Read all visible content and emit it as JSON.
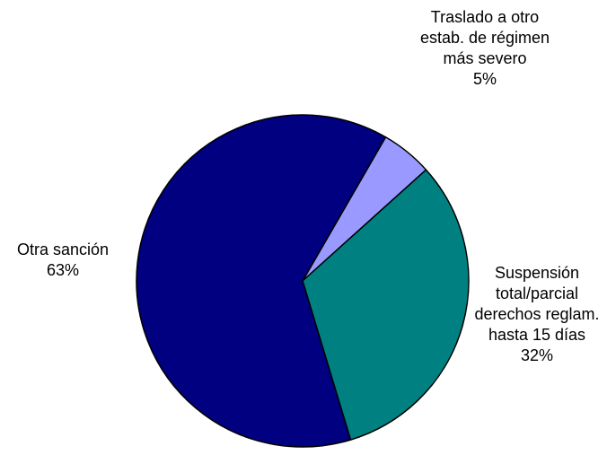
{
  "chart_data": {
    "type": "pie",
    "categories": [
      "Traslado a otro estab. de régimen más severo",
      "Suspensión total/parcial derechos reglam. hasta 15 días",
      "Otra sanción"
    ],
    "values": [
      5,
      32,
      63
    ],
    "value_labels": [
      "5%",
      "32%",
      "63%"
    ],
    "colors": [
      "#9999ff",
      "#008080",
      "#000080"
    ]
  }
}
